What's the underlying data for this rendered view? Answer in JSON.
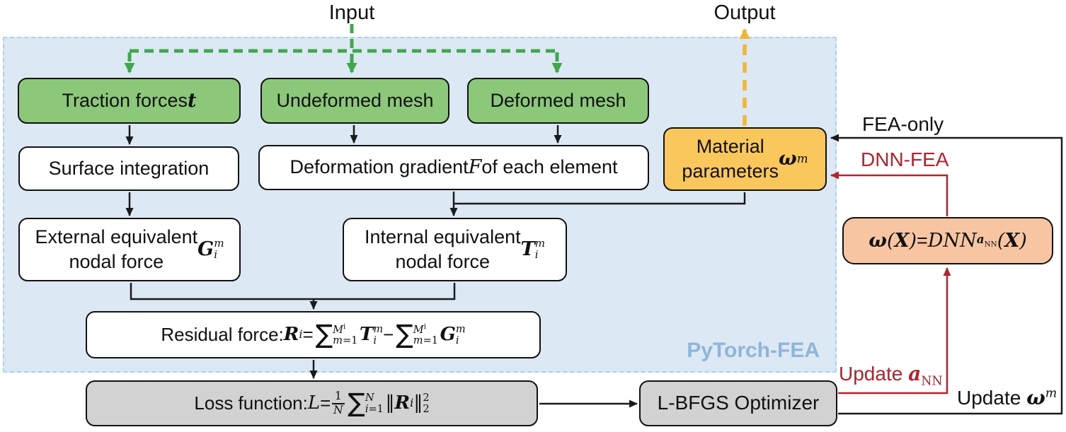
{
  "colors": {
    "canvas_bg": "#ffffff",
    "region_bg": "#dce9f5",
    "region_border": "#a6d4ee",
    "green_box": "#8cc87a",
    "orange_box": "#fac75c",
    "salmon_box": "#f7c5a2",
    "gray_box": "#d2d2d2",
    "white_box": "#ffffff",
    "box_border": "#111111",
    "line_black": "#1a1a1a",
    "arrow_green": "#3fa84c",
    "arrow_yellow": "#f2b636",
    "arrow_red": "#b3232e",
    "pytorch_label": "#8fb5d8"
  },
  "labels": {
    "input": "Input",
    "output": "Output",
    "fea_only": "FEA-only",
    "dnn_fea": "DNN-FEA",
    "pytorch_fea": "PyTorch-FEA",
    "update_ann_html": "Update <b class='mv'>a</b><sub>NN</sub>",
    "update_wm_html": "Update <b class='mv'>ω</b><sup><i class='mi'>m</i></sup>"
  },
  "nodes": {
    "traction_html": "Traction forces <b class='mv'>t</b>",
    "undeformed_html": "Undeformed mesh",
    "deformed_html": "Deformed mesh",
    "surface_html": "Surface integration",
    "defgrad_html": "Deformation gradient <i class='mi'>F</i> of each element",
    "material_html": "Material<br>parameters <b class='mv'>ω</b><sup><i class='mi'>m</i></sup>",
    "external_html": "External equivalent<br>nodal force <b class='mv'>G</b><span class='ss'><span class='t'><i>m</i></span><span class='b'><i>i</i></span></span>",
    "internal_html": "Internal equivalent<br>nodal force <b class='mv'>T</b><span class='ss'><span class='t'><i>m</i></span><span class='b'><i>i</i></span></span>",
    "residual_html": "Residual force: <b class='mv'>R</b><sub><i>i</i></sub> = <span class='sum'>∑</span><span class='ss lim'><span class='t'><i>M</i><sup>i</sup></span><span class='b'><i>m</i>=1</span></span><b class='mv'>T</b><span class='ss'><span class='t'><i>m</i></span><span class='b'><i>i</i></span></span> − <span class='sum'>∑</span><span class='ss lim'><span class='t'><i>M</i><sup>i</sup></span><span class='b'><i>m</i>=1</span></span><b class='mv'>G</b><span class='ss'><span class='t'><i>m</i></span><span class='b'><i>i</i></span></span>",
    "loss_html": "Loss function: <i class='mi'>L</i> = <span class='frac'><span class='ft'>1</span><span class='fb'>N</span></span><span class='sum'>∑</span><span class='ss lim'><span class='t'><i>N</i></span><span class='b'><i>i</i>=1</span></span><span class='mi'>‖</span><b class='mv'>R</b><sub><i>i</i></sub><span class='mi'>‖</span><span class='ss'><span class='t'>2</span><span class='b'>2</span></span>",
    "lbfgs": "L-BFGS Optimizer",
    "dnn_html": "<b class='mv'>ω</b><span class='mi'>(</span><b class='mv'>X</b><span class='mi'>)</span> = <i class='mi'>DNN</i><sub><b class='mv'>a</b><sub>NN</sub></sub><span class='mi'>(</span><b class='mv'>X</b><span class='mi'>)</span>"
  }
}
